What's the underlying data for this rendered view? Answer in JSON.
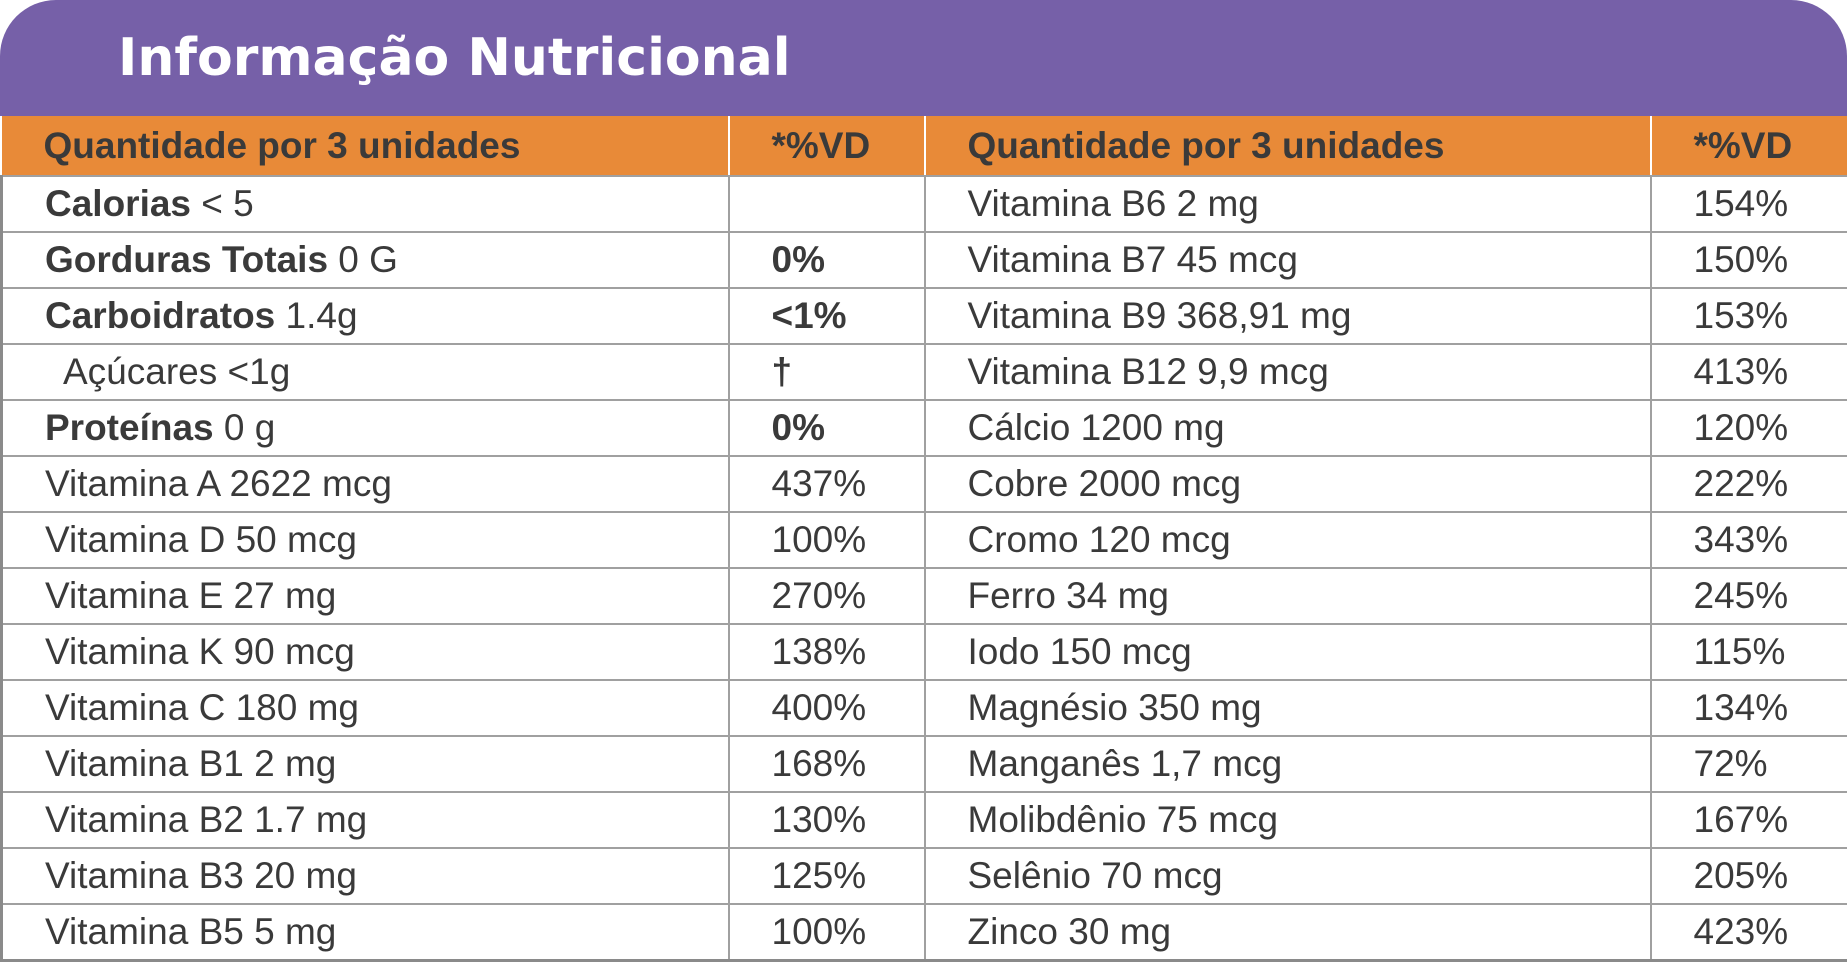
{
  "title": "Informação Nutricional",
  "header": {
    "left_qty": "Quantidade por 3 unidades",
    "left_dv": "*%VD",
    "right_qty": "Quantidade por 3 unidades",
    "right_dv": "*%VD"
  },
  "rows": [
    {
      "l_name": "Calorias",
      "l_amount": " < 5",
      "l_dv": "",
      "r_item": "Vitamina B6 2 mg",
      "r_dv": "154%"
    },
    {
      "l_name": "Gorduras Totais",
      "l_amount": " 0 G",
      "l_dv": "0%",
      "r_item": "Vitamina B7 45 mcg",
      "r_dv": "150%"
    },
    {
      "l_name": "Carboidratos",
      "l_amount": " 1.4g",
      "l_dv": "<1%",
      "r_item": "Vitamina B9 368,91 mg",
      "r_dv": "153%"
    },
    {
      "l_name": "",
      "l_amount": "Açúcares <1g",
      "l_dv": "†",
      "r_item": "Vitamina B12 9,9 mcg",
      "r_dv": "413%"
    },
    {
      "l_name": "Proteínas",
      "l_amount": " 0 g",
      "l_dv": "0%",
      "r_item": "Cálcio 1200 mg",
      "r_dv": "120%"
    },
    {
      "l_name": "",
      "l_amount": "Vitamina A 2622 mcg",
      "l_dv": "437%",
      "r_item": "Cobre 2000 mcg",
      "r_dv": "222%"
    },
    {
      "l_name": "",
      "l_amount": "Vitamina D 50 mcg",
      "l_dv": "100%",
      "r_item": "Cromo 120 mcg",
      "r_dv": "343%"
    },
    {
      "l_name": "",
      "l_amount": "Vitamina E 27 mg",
      "l_dv": "270%",
      "r_item": "Ferro 34 mg",
      "r_dv": "245%"
    },
    {
      "l_name": "",
      "l_amount": "Vitamina K 90 mcg",
      "l_dv": "138%",
      "r_item": "Iodo 150 mcg",
      "r_dv": "115%"
    },
    {
      "l_name": "",
      "l_amount": "Vitamina C 180 mg",
      "l_dv": "400%",
      "r_item": "Magnésio 350 mg",
      "r_dv": "134%"
    },
    {
      "l_name": "",
      "l_amount": "Vitamina B1 2 mg",
      "l_dv": "168%",
      "r_item": "Manganês 1,7 mcg",
      "r_dv": "72%"
    },
    {
      "l_name": "",
      "l_amount": "Vitamina B2 1.7 mg",
      "l_dv": "130%",
      "r_item": "Molibdênio 75 mcg",
      "r_dv": "167%"
    },
    {
      "l_name": "",
      "l_amount": "Vitamina B3 20 mg",
      "l_dv": "125%",
      "r_item": "Selênio 70 mcg",
      "r_dv": "205%"
    },
    {
      "l_name": "",
      "l_amount": "Vitamina B5 5 mg",
      "l_dv": "100%",
      "r_item": "Zinco 30 mg",
      "r_dv": "423%"
    }
  ],
  "colors": {
    "title_bar": "#7660a8",
    "header_bar": "#e88a38",
    "text": "#3a3a3a"
  }
}
